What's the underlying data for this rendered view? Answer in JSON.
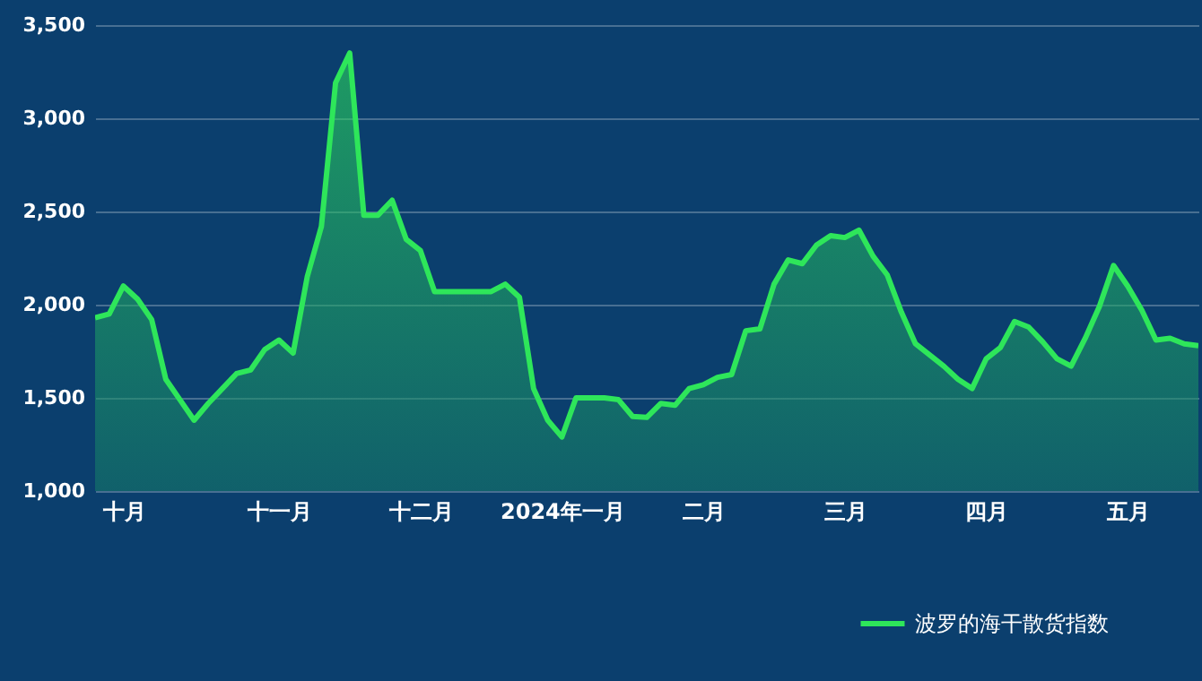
{
  "chart_data": {
    "type": "area",
    "categories": [
      null,
      null,
      "十月",
      null,
      null,
      null,
      null,
      null,
      null,
      null,
      null,
      null,
      null,
      "十一月",
      null,
      null,
      null,
      null,
      null,
      null,
      null,
      null,
      null,
      "十二月",
      null,
      null,
      null,
      null,
      null,
      null,
      null,
      null,
      null,
      "2024年一月",
      null,
      null,
      null,
      null,
      null,
      null,
      null,
      null,
      null,
      "二月",
      null,
      null,
      null,
      null,
      null,
      null,
      null,
      null,
      null,
      "三月",
      null,
      null,
      null,
      null,
      null,
      null,
      null,
      null,
      null,
      "四月",
      null,
      null,
      null,
      null,
      null,
      null,
      null,
      null,
      null,
      "五月",
      null,
      null,
      null,
      null,
      null
    ],
    "series": [
      {
        "name": "波罗的海干散货指数",
        "color": "#2ee65a",
        "values": [
          1930,
          1950,
          2100,
          2030,
          1920,
          1600,
          1490,
          1380,
          1470,
          1550,
          1630,
          1650,
          1760,
          1810,
          1740,
          2150,
          2420,
          3190,
          3350,
          2480,
          2480,
          2560,
          2350,
          2290,
          2070,
          2070,
          2070,
          2070,
          2070,
          2110,
          2040,
          1550,
          1380,
          1290,
          1500,
          1500,
          1500,
          1490,
          1400,
          1395,
          1470,
          1460,
          1550,
          1570,
          1610,
          1625,
          1860,
          1870,
          2110,
          2240,
          2220,
          2320,
          2370,
          2360,
          2400,
          2260,
          2160,
          1960,
          1790,
          1730,
          1670,
          1600,
          1550,
          1710,
          1770,
          1910,
          1880,
          1800,
          1710,
          1670,
          1820,
          1990,
          2210,
          2100,
          1970,
          1810,
          1820,
          1790,
          1780
        ]
      }
    ],
    "ylim": [
      1000,
      3500
    ],
    "yticks": [
      {
        "value": 1000,
        "label": "1,000"
      },
      {
        "value": 1500,
        "label": "1,500"
      },
      {
        "value": 2000,
        "label": "2,000"
      },
      {
        "value": 2500,
        "label": "2,500"
      },
      {
        "value": 3000,
        "label": "3,000"
      },
      {
        "value": 3500,
        "label": "3,500"
      }
    ],
    "grid": "y",
    "legend": "bottom right"
  }
}
